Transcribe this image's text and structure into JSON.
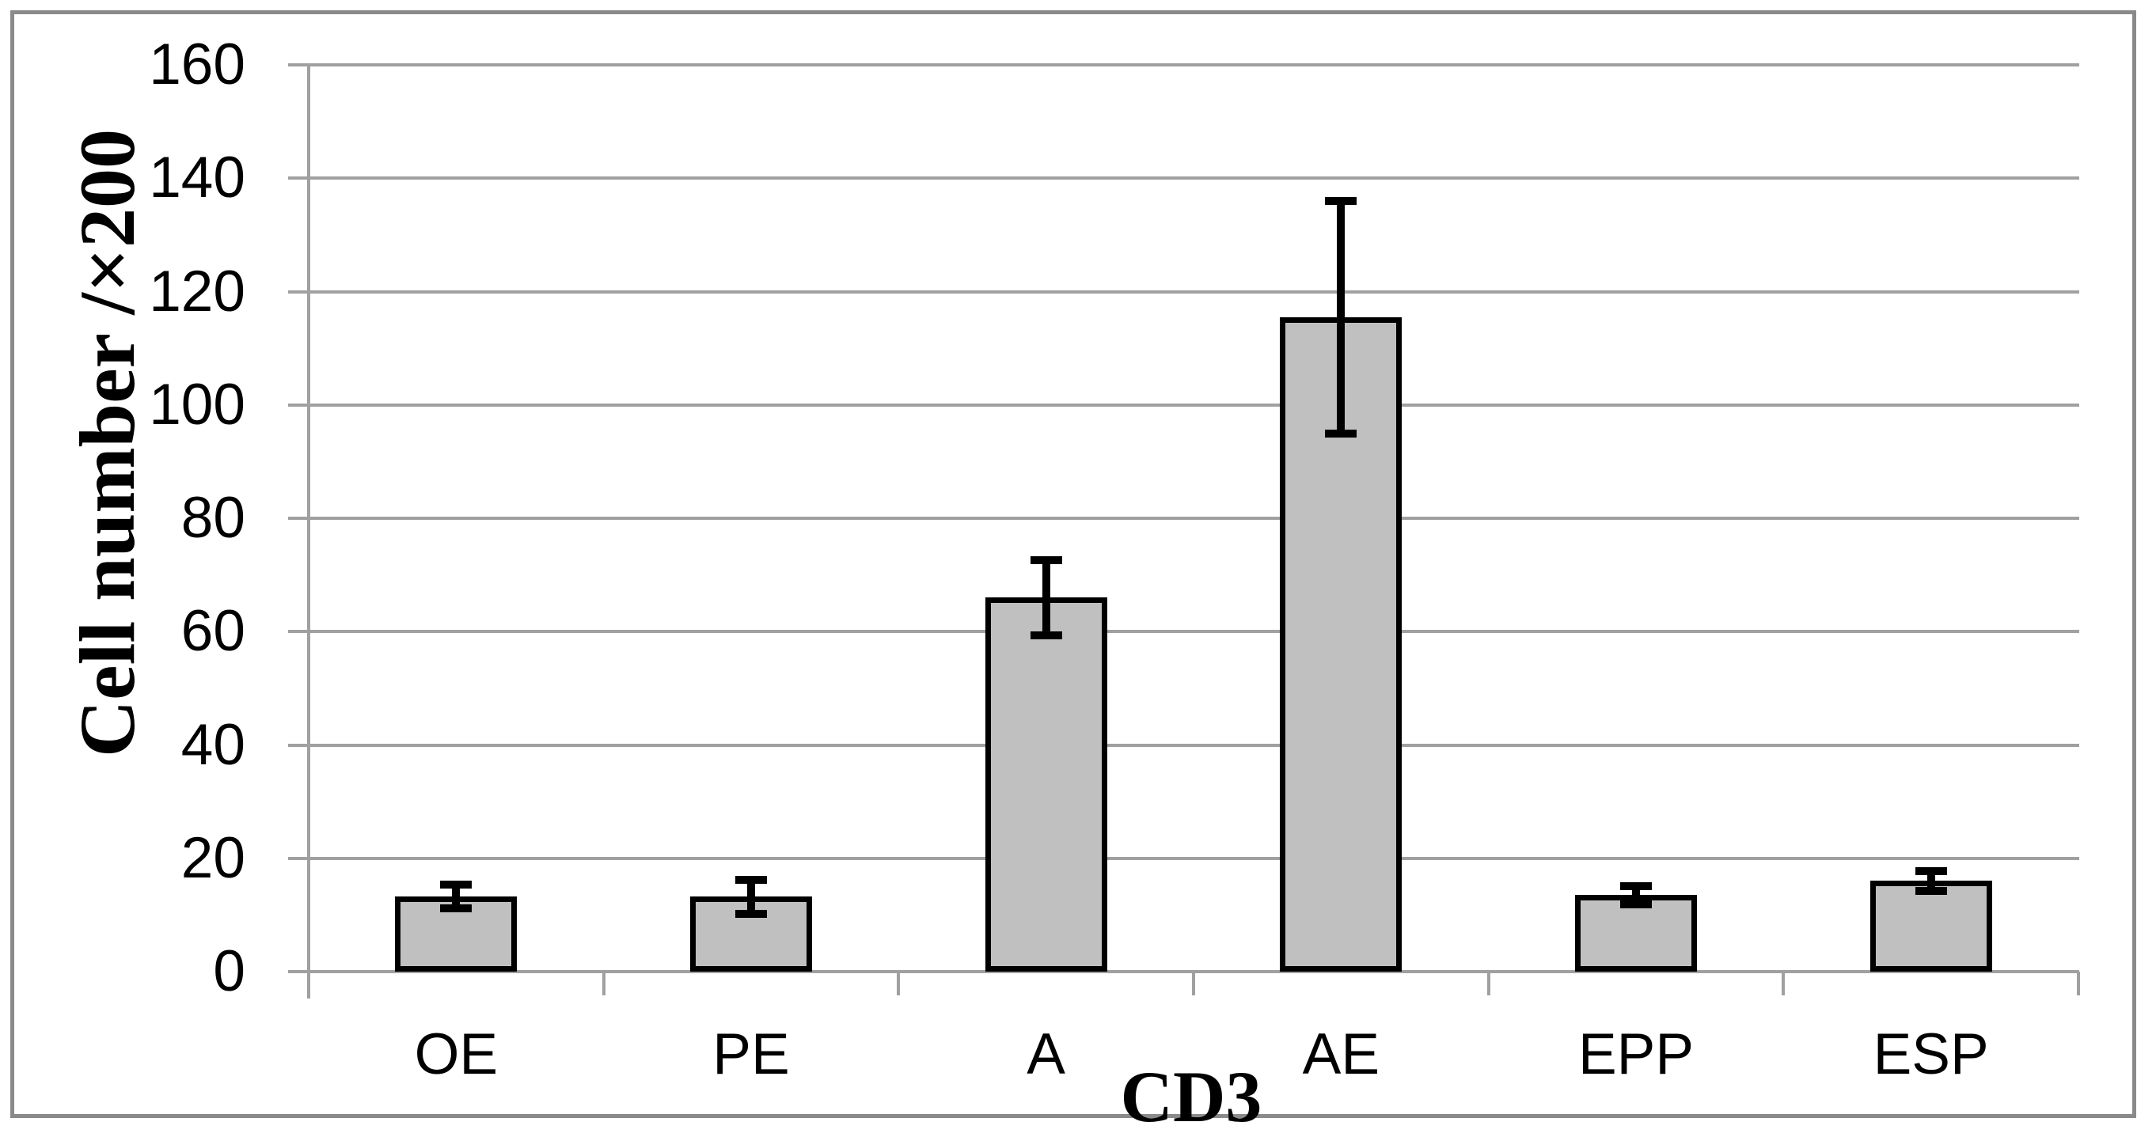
{
  "chart_data": {
    "type": "bar",
    "title": "",
    "xlabel": "CD3",
    "ylabel": "Cell number /×200",
    "categories": [
      "OE",
      "PE",
      "A",
      "AE",
      "EPP",
      "ESP"
    ],
    "values": [
      13.2,
      13.2,
      66,
      115.5,
      13.5,
      16
    ],
    "errors": [
      2.1,
      3.0,
      6.6,
      20.5,
      1.6,
      1.7
    ],
    "ylim": [
      0,
      160
    ],
    "yticks": [
      0,
      20,
      40,
      60,
      80,
      100,
      120,
      140,
      160
    ],
    "grid": true,
    "legend": false,
    "colors": {
      "bar_fill": "#c0c0c0",
      "bar_border": "#000000",
      "grid": "#a0a0a0",
      "axis": "#a0a0a0",
      "frame": "#8a8a8a",
      "text": "#000000",
      "error_bar": "#000000"
    }
  }
}
